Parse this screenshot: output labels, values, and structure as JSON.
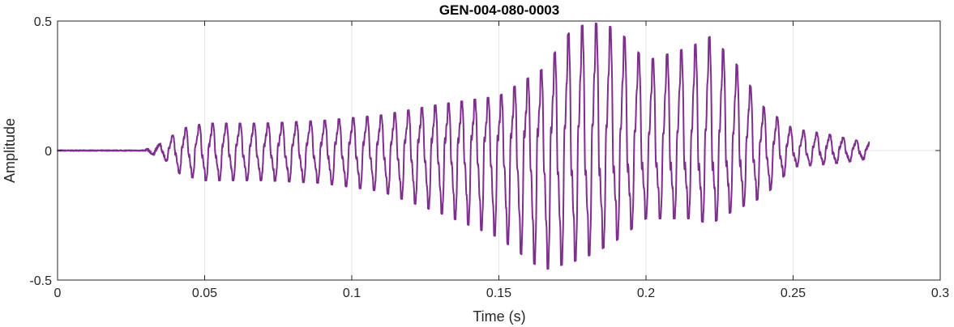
{
  "chart_data": {
    "type": "line",
    "title": "GEN-004-080-0003",
    "xlabel": "Time (s)",
    "ylabel": "Amplitude",
    "xlim": [
      0,
      0.3
    ],
    "ylim": [
      -0.5,
      0.5
    ],
    "x_ticks": [
      0,
      0.05,
      0.1,
      0.15,
      0.2,
      0.25,
      0.3
    ],
    "x_tick_labels": [
      "0",
      "0.05",
      "0.1",
      "0.15",
      "0.2",
      "0.25",
      "0.3"
    ],
    "y_ticks": [
      -0.5,
      0,
      0.5
    ],
    "y_tick_labels": [
      "-0.5",
      "0",
      "0.5"
    ],
    "grid": true,
    "line_color": "#7E2F8E",
    "series": [
      {
        "signal": "waveform",
        "duration_s": 0.276,
        "onset_s": 0.03,
        "fundamental_hz": 215,
        "envelope_points": [
          {
            "t": 0.0,
            "pos": 0.0,
            "neg": 0.0
          },
          {
            "t": 0.03,
            "pos": 0.005,
            "neg": -0.005
          },
          {
            "t": 0.036,
            "pos": 0.03,
            "neg": -0.03
          },
          {
            "t": 0.042,
            "pos": 0.08,
            "neg": -0.09
          },
          {
            "t": 0.05,
            "pos": 0.1,
            "neg": -0.11
          },
          {
            "t": 0.07,
            "pos": 0.1,
            "neg": -0.11
          },
          {
            "t": 0.09,
            "pos": 0.11,
            "neg": -0.12
          },
          {
            "t": 0.11,
            "pos": 0.13,
            "neg": -0.15
          },
          {
            "t": 0.13,
            "pos": 0.17,
            "neg": -0.23
          },
          {
            "t": 0.15,
            "pos": 0.2,
            "neg": -0.32
          },
          {
            "t": 0.165,
            "pos": 0.3,
            "neg": -0.44
          },
          {
            "t": 0.175,
            "pos": 0.45,
            "neg": -0.41
          },
          {
            "t": 0.182,
            "pos": 0.47,
            "neg": -0.38
          },
          {
            "t": 0.19,
            "pos": 0.45,
            "neg": -0.33
          },
          {
            "t": 0.2,
            "pos": 0.33,
            "neg": -0.25
          },
          {
            "t": 0.215,
            "pos": 0.38,
            "neg": -0.25
          },
          {
            "t": 0.222,
            "pos": 0.42,
            "neg": -0.27
          },
          {
            "t": 0.23,
            "pos": 0.33,
            "neg": -0.22
          },
          {
            "t": 0.24,
            "pos": 0.16,
            "neg": -0.17
          },
          {
            "t": 0.25,
            "pos": 0.08,
            "neg": -0.06
          },
          {
            "t": 0.262,
            "pos": 0.06,
            "neg": -0.05
          },
          {
            "t": 0.27,
            "pos": 0.04,
            "neg": -0.04
          },
          {
            "t": 0.276,
            "pos": 0.03,
            "neg": -0.03
          }
        ]
      }
    ]
  }
}
